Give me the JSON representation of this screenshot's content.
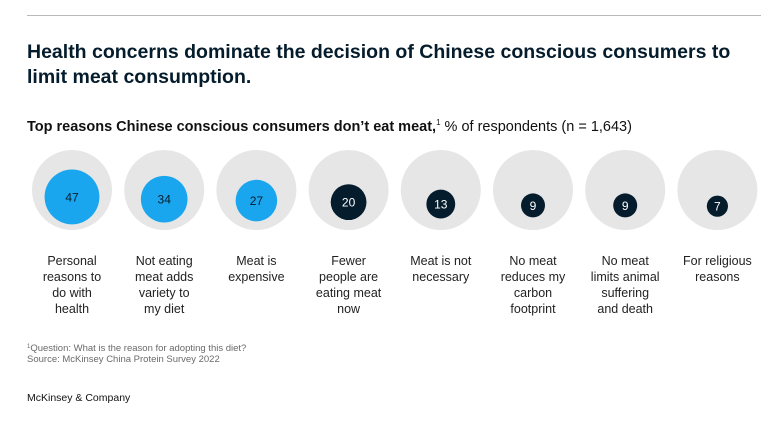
{
  "title": "Health concerns dominate the decision of Chinese conscious consumers to limit meat consumption.",
  "subtitle": {
    "bold": "Top reasons Chinese conscious consumers don’t eat meat,",
    "sup": "1",
    "rest": " % of respondents (n = 1,643)"
  },
  "colors": {
    "highlight": "#1aa6ef",
    "dark": "#051c2c",
    "background_circle": "#e6e6e6"
  },
  "chart_data": {
    "type": "bubble",
    "title": "Top reasons Chinese conscious consumers don’t eat meat",
    "unit": "% of respondents",
    "max_value": 100,
    "categories": [
      "Personal\nreasons to\ndo with\nhealth",
      "Not eating\nmeat adds\nvariety to\nmy diet",
      "Meat is\nexpensive",
      "Fewer\npeople are\neating meat\nnow",
      "Meat is not\nnecessary",
      "No meat\nreduces my\ncarbon\nfootprint",
      "No meat\nlimits animal\nsuffering\nand death",
      "For religious\nreasons"
    ],
    "values": [
      47,
      34,
      27,
      20,
      13,
      9,
      9,
      7
    ],
    "highlighted": [
      true,
      true,
      true,
      false,
      false,
      false,
      false,
      false
    ]
  },
  "footnote": {
    "sup": "1",
    "question": "Question: What is the reason for adopting this diet?",
    "source": "Source: McKinsey China Protein Survey 2022"
  },
  "brand": "McKinsey & Company"
}
